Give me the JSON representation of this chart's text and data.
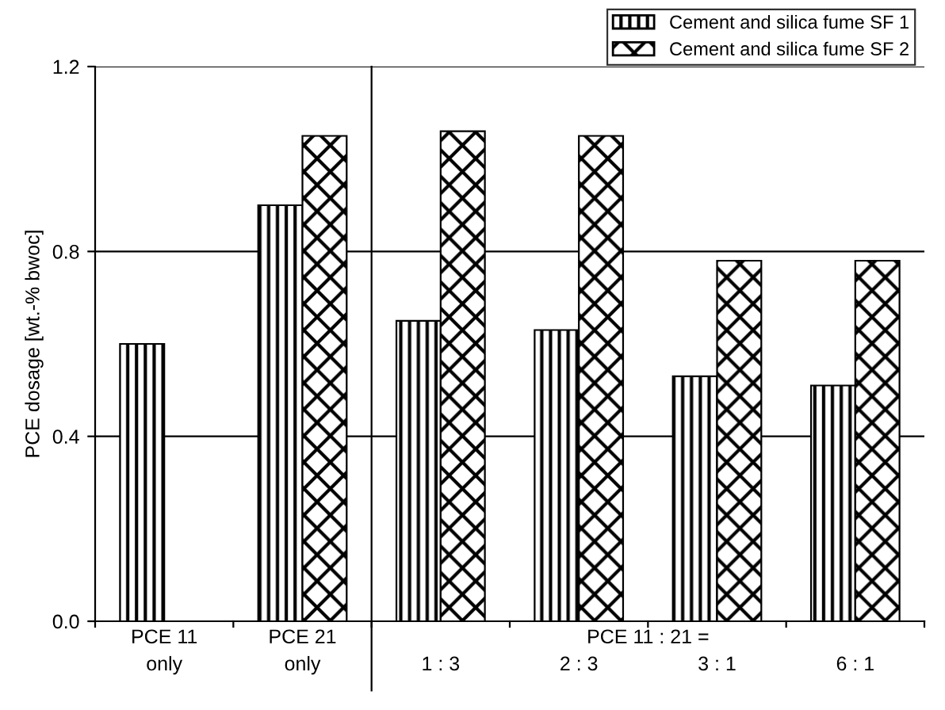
{
  "chart_data": {
    "type": "bar",
    "categories": [
      "PCE 11\nonly",
      "PCE 21\nonly",
      "1 : 3",
      "2 : 3",
      "3 : 1",
      "6 : 1"
    ],
    "series": [
      {
        "name": "Cement and silica fume SF 1",
        "color": "#000000",
        "values": [
          0.6,
          0.9,
          0.65,
          0.63,
          0.53,
          0.51
        ]
      },
      {
        "name": "Cement and silica fume SF 2",
        "color": "#000000",
        "values": [
          null,
          1.05,
          1.06,
          1.05,
          0.78,
          0.78
        ]
      }
    ],
    "ylabel": "PCE dosage [wt.-% bwoc]",
    "ylim": [
      0,
      1.2
    ],
    "yticks": [
      {
        "value": 0,
        "label": "0.0"
      },
      {
        "value": 0.4,
        "label": "0.4"
      },
      {
        "value": 0.8,
        "label": "0.8"
      },
      {
        "value": 1.2,
        "label": "1.2"
      }
    ],
    "grid": "y",
    "legend": "top right",
    "annotations": [
      "PCE 11 : 21 ="
    ]
  }
}
